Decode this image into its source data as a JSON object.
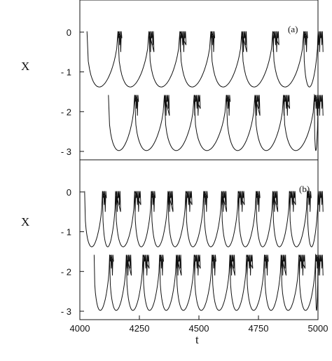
{
  "chart_data": [
    {
      "type": "line",
      "panel_label": "(a)",
      "xlabel": "",
      "ylabel": "X",
      "xlim": [
        4000,
        5000
      ],
      "ylim": [
        -3,
        0.35
      ],
      "yticks": [
        "0",
        "- 1",
        "- 2",
        "- 3"
      ],
      "ytick_values": [
        0,
        -1,
        -2,
        -3
      ],
      "series": [
        {
          "offset": 0,
          "spikes": [
            4030,
            4160,
            4290,
            4420,
            4550,
            4680,
            4810,
            4940
          ]
        },
        {
          "offset": -1.6,
          "spikes": [
            4120,
            4230,
            4355,
            4480,
            4615,
            4735,
            4855,
            4985
          ]
        }
      ],
      "grid": false
    },
    {
      "type": "line",
      "panel_label": "(b)",
      "xlabel": "t",
      "ylabel": "X",
      "xlim": [
        4000,
        5000
      ],
      "ylim": [
        -3,
        0.35
      ],
      "xticks": [
        "4000",
        "4250",
        "4500",
        "4750",
        "5000"
      ],
      "xtick_values": [
        4000,
        4250,
        4500,
        4750,
        5000
      ],
      "yticks": [
        "0",
        "- 1",
        "- 2",
        "- 3"
      ],
      "ytick_values": [
        0,
        -1,
        -2,
        -3
      ],
      "series": [
        {
          "offset": 0,
          "spikes": [
            4020,
            4095,
            4150,
            4230,
            4300,
            4370,
            4445,
            4520,
            4595,
            4665,
            4740,
            4810,
            4880,
            4955
          ]
        },
        {
          "offset": -1.6,
          "spikes": [
            4060,
            4125,
            4195,
            4265,
            4335,
            4405,
            4480,
            4555,
            4630,
            4700,
            4775,
            4845,
            4920,
            4990
          ]
        }
      ],
      "grid": false
    }
  ]
}
